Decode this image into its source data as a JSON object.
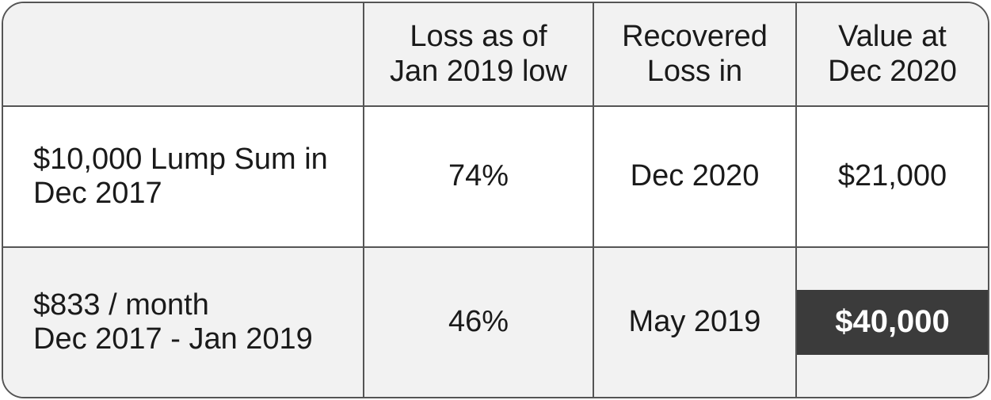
{
  "table": {
    "headers": [
      "",
      "Loss as of\nJan 2019 low",
      "Recovered\nLoss in",
      "Value at\nDec 2020"
    ],
    "rows": [
      {
        "label": "$10,000 Lump Sum in\nDec 2017",
        "loss": "74%",
        "recovered": "Dec 2020",
        "value": "$21,000"
      },
      {
        "label": "$833 / month\nDec 2017 - Jan 2019",
        "loss": "46%",
        "recovered": "May 2019",
        "value": "$40,000",
        "value_highlight": "#3b3b3b"
      }
    ]
  }
}
